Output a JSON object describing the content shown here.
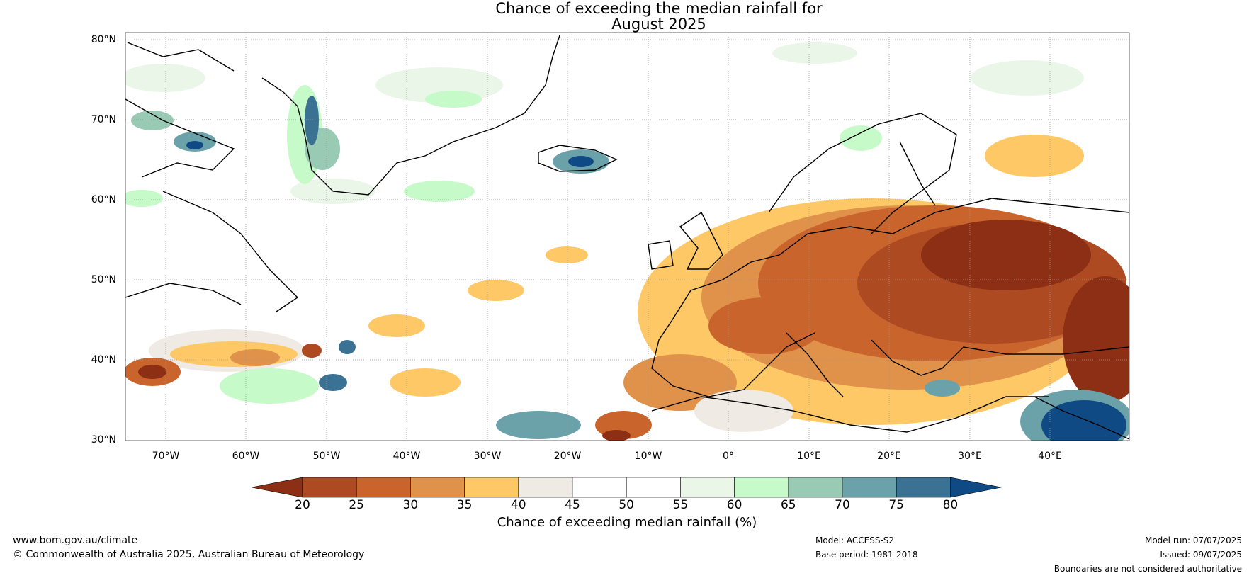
{
  "title": {
    "line1": "Chance of exceeding the median rainfall for",
    "line2": "August 2025"
  },
  "map": {
    "lat_labels": [
      "80°N",
      "70°N",
      "60°N",
      "50°N",
      "40°N",
      "30°N"
    ],
    "lon_labels": [
      "70°W",
      "60°W",
      "50°W",
      "40°W",
      "30°W",
      "20°W",
      "10°W",
      "0°",
      "10°E",
      "20°E",
      "30°E",
      "40°E"
    ],
    "extent": {
      "lon_min": -75,
      "lon_max": 50,
      "lat_min": 30,
      "lat_max": 81
    }
  },
  "colorbar": {
    "ticks": [
      "20",
      "25",
      "30",
      "35",
      "40",
      "45",
      "50",
      "55",
      "60",
      "65",
      "70",
      "75",
      "80"
    ],
    "colors": [
      "#8c2f14",
      "#ad4a22",
      "#c9642d",
      "#e0914a",
      "#fdc865",
      "#efeae4",
      "#ffffff",
      "#ffffff",
      "#e9f6e8",
      "#c6fac8",
      "#98cab4",
      "#6ba2a9",
      "#3b7293",
      "#0f4a85"
    ],
    "label": "Chance of exceeding median rainfall (%)"
  },
  "footer": {
    "url": "www.bom.gov.au/climate",
    "copyright": "© Commonwealth of Australia 2025, Australian Bureau of Meteorology",
    "model": "Model: ACCESS-S2",
    "base_period": "Base period: 1981-2018",
    "model_run": "Model run: 07/07/2025",
    "issued": "Issued: 09/07/2025",
    "disclaimer": "Boundaries are not considered authoritative"
  }
}
